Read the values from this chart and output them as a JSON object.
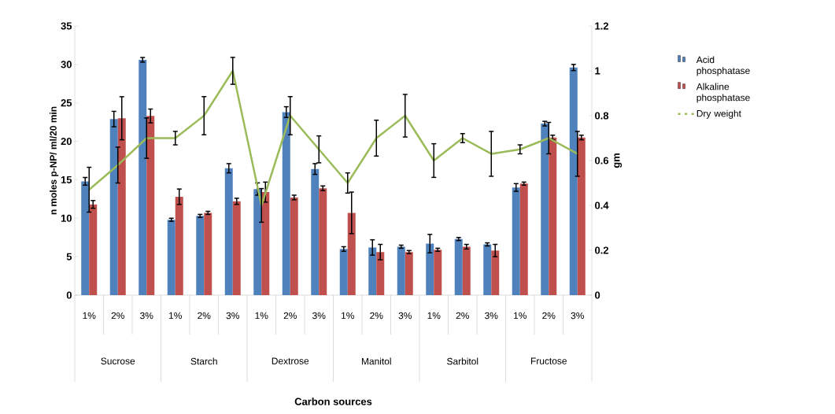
{
  "chart_data": {
    "type": "bar",
    "categories": [
      "1%",
      "2%",
      "3%",
      "1%",
      "2%",
      "3%",
      "1%",
      "2%",
      "3%",
      "1%",
      "2%",
      "3%",
      "1%",
      "2%",
      "3%",
      "1%",
      "2%",
      "3%"
    ],
    "annotations": [
      "Sucrose",
      "Starch",
      "Dextrose",
      "Manitol",
      "Sarbitol",
      "Fructose",
      "Carbon sources"
    ],
    "ylabel": "n moles p-NP/ ml/20 min",
    "y2label": "gm",
    "ylim": [
      0,
      35
    ],
    "yticks": [
      0,
      5,
      10,
      15,
      20,
      25,
      30,
      35
    ],
    "y2lim": [
      0,
      1.2
    ],
    "y2ticks": [
      0,
      0.2,
      0.4,
      0.6,
      0.8,
      1,
      1.2
    ],
    "legend": "right",
    "series": [
      {
        "name": "Acid phosphatase",
        "color": "#4f81bd",
        "values": [
          14.8,
          22.9,
          30.6,
          9.8,
          10.3,
          16.5,
          13.8,
          23.8,
          16.4,
          6.0,
          6.2,
          6.3,
          6.7,
          7.3,
          6.6,
          14.0,
          22.3,
          29.6
        ],
        "errors": [
          0.5,
          1.0,
          0.3,
          0.2,
          0.2,
          0.6,
          0.8,
          0.7,
          0.7,
          0.3,
          1.0,
          0.2,
          1.2,
          0.2,
          0.2,
          0.5,
          0.3,
          0.4
        ]
      },
      {
        "name": "Alkaline phosphatase",
        "color": "#c0504d",
        "values": [
          11.8,
          23.0,
          23.3,
          12.8,
          10.7,
          12.2,
          13.4,
          12.7,
          13.9,
          10.7,
          5.6,
          5.6,
          5.9,
          6.3,
          5.8,
          14.5,
          20.5,
          20.5
        ],
        "errors": [
          0.5,
          2.8,
          0.9,
          1.0,
          0.2,
          0.4,
          1.3,
          0.3,
          0.3,
          2.7,
          1.0,
          0.2,
          0.2,
          0.3,
          0.8,
          0.2,
          0.3,
          0.3
        ]
      },
      {
        "name": "Dry weight",
        "type": "line",
        "axis": "y2",
        "color": "#9bbb59",
        "values": [
          0.47,
          0.58,
          0.7,
          0.7,
          0.8,
          1.0,
          0.4,
          0.8,
          0.65,
          0.5,
          0.7,
          0.8,
          0.6,
          0.7,
          0.63,
          0.65,
          0.7,
          0.63
        ],
        "errors": [
          0.1,
          0.08,
          0.09,
          0.03,
          0.085,
          0.06,
          0.075,
          0.085,
          0.06,
          0.045,
          0.08,
          0.095,
          0.075,
          0.02,
          0.1,
          0.02,
          0.07,
          0.1
        ]
      }
    ]
  }
}
